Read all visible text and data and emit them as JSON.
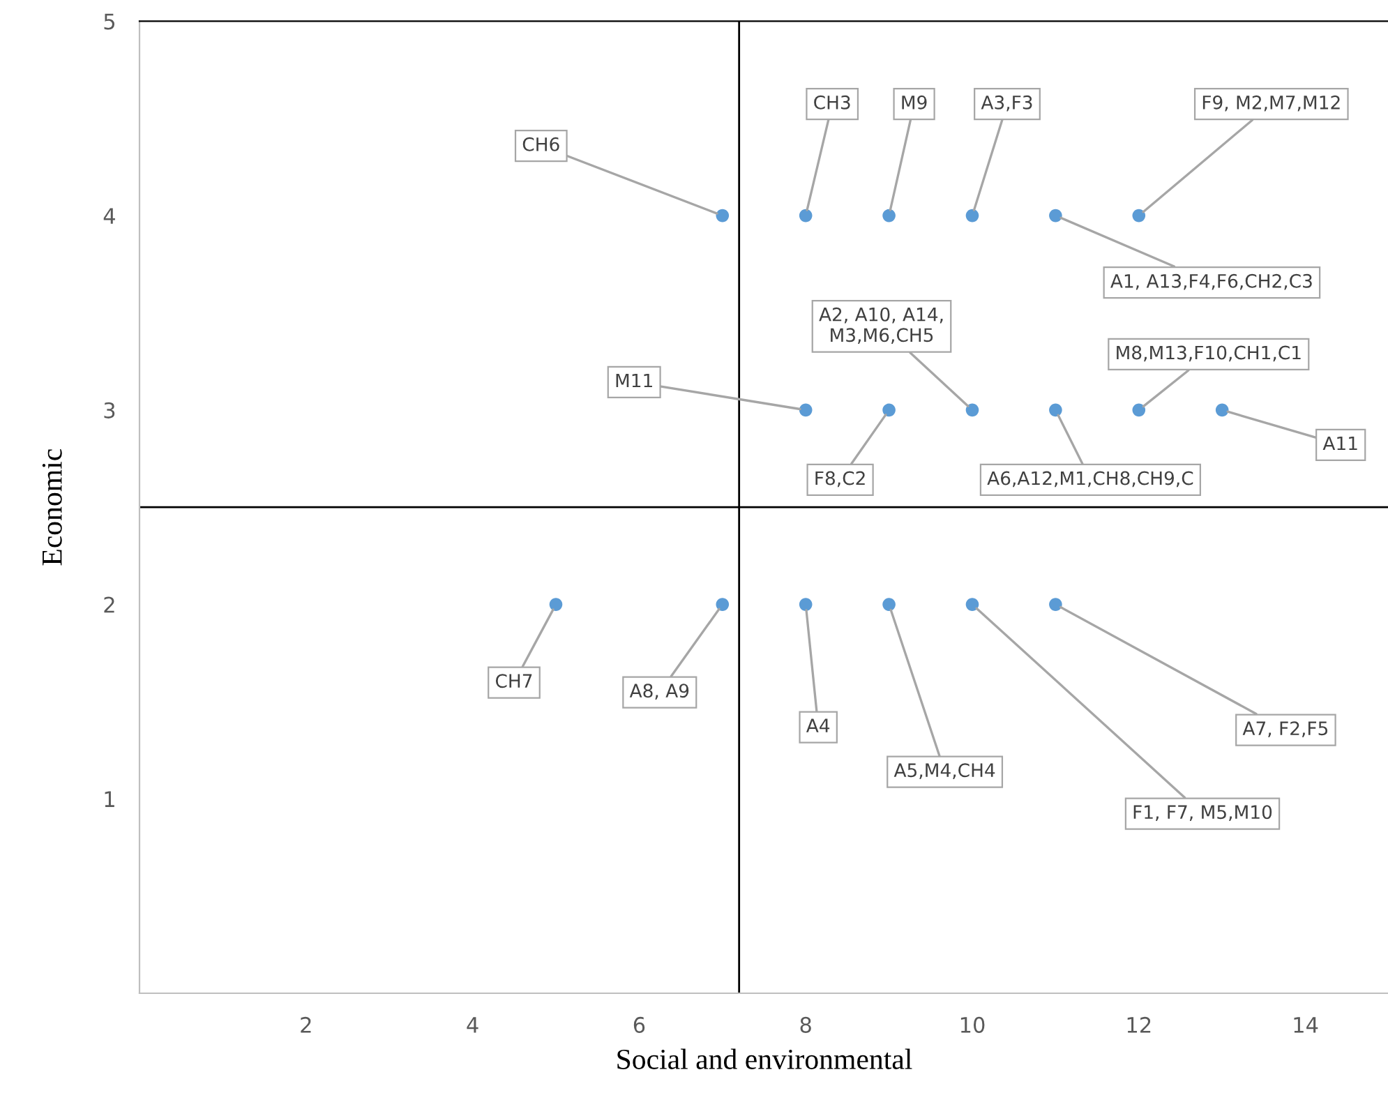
{
  "chart_data": {
    "type": "scatter",
    "xlabel": "Social and environmental",
    "ylabel": "Economic",
    "x": [
      7,
      8,
      9,
      10,
      11,
      12,
      8,
      9,
      10,
      11,
      12,
      13,
      5,
      7,
      8,
      9,
      10,
      11
    ],
    "values": [
      4,
      4,
      4,
      4,
      4,
      4,
      3,
      3,
      3,
      3,
      3,
      3,
      2,
      2,
      2,
      2,
      2,
      2
    ],
    "color": "#5b9bd5",
    "marker": "circle",
    "xlim": [
      0,
      15
    ],
    "ylim": [
      0,
      5
    ],
    "xticks": [
      2,
      4,
      6,
      8,
      10,
      12,
      14
    ],
    "yticks": [
      1,
      2,
      3,
      4,
      5
    ],
    "grid": false,
    "ref_lines": [
      {
        "axis": "x",
        "value": 7.2,
        "color": "#000000"
      },
      {
        "axis": "y",
        "value": 2.5,
        "color": "#000000"
      }
    ],
    "annotations": [
      {
        "text": "CH6",
        "x": 7,
        "y": 4
      },
      {
        "text": "CH3",
        "x": 8,
        "y": 4
      },
      {
        "text": "M9",
        "x": 9,
        "y": 4
      },
      {
        "text": "A3,F3",
        "x": 10,
        "y": 4
      },
      {
        "text": "A1, A13,F4,F6,CH2,C3",
        "x": 11,
        "y": 4
      },
      {
        "text": "F9, M2,M7,M12",
        "x": 12,
        "y": 4
      },
      {
        "text": "M11",
        "x": 8,
        "y": 3
      },
      {
        "text": "F8,C2",
        "x": 9,
        "y": 3
      },
      {
        "text": "A2, A10, A14,\nM3,M6,CH5",
        "x": 10,
        "y": 3
      },
      {
        "text": "A6,A12,M1,CH8,CH9,C",
        "x": 11,
        "y": 3
      },
      {
        "text": "M8,M13,F10,CH1,C1",
        "x": 12,
        "y": 3
      },
      {
        "text": "A11",
        "x": 13,
        "y": 3
      },
      {
        "text": "CH7",
        "x": 5,
        "y": 2
      },
      {
        "text": "A8, A9",
        "x": 7,
        "y": 2
      },
      {
        "text": "A4",
        "x": 8,
        "y": 2
      },
      {
        "text": "A5,M4,CH4",
        "x": 9,
        "y": 2
      },
      {
        "text": "F1, F7, M5,M10",
        "x": 10,
        "y": 2
      },
      {
        "text": "A7, F2,F5",
        "x": 11,
        "y": 2
      }
    ]
  }
}
